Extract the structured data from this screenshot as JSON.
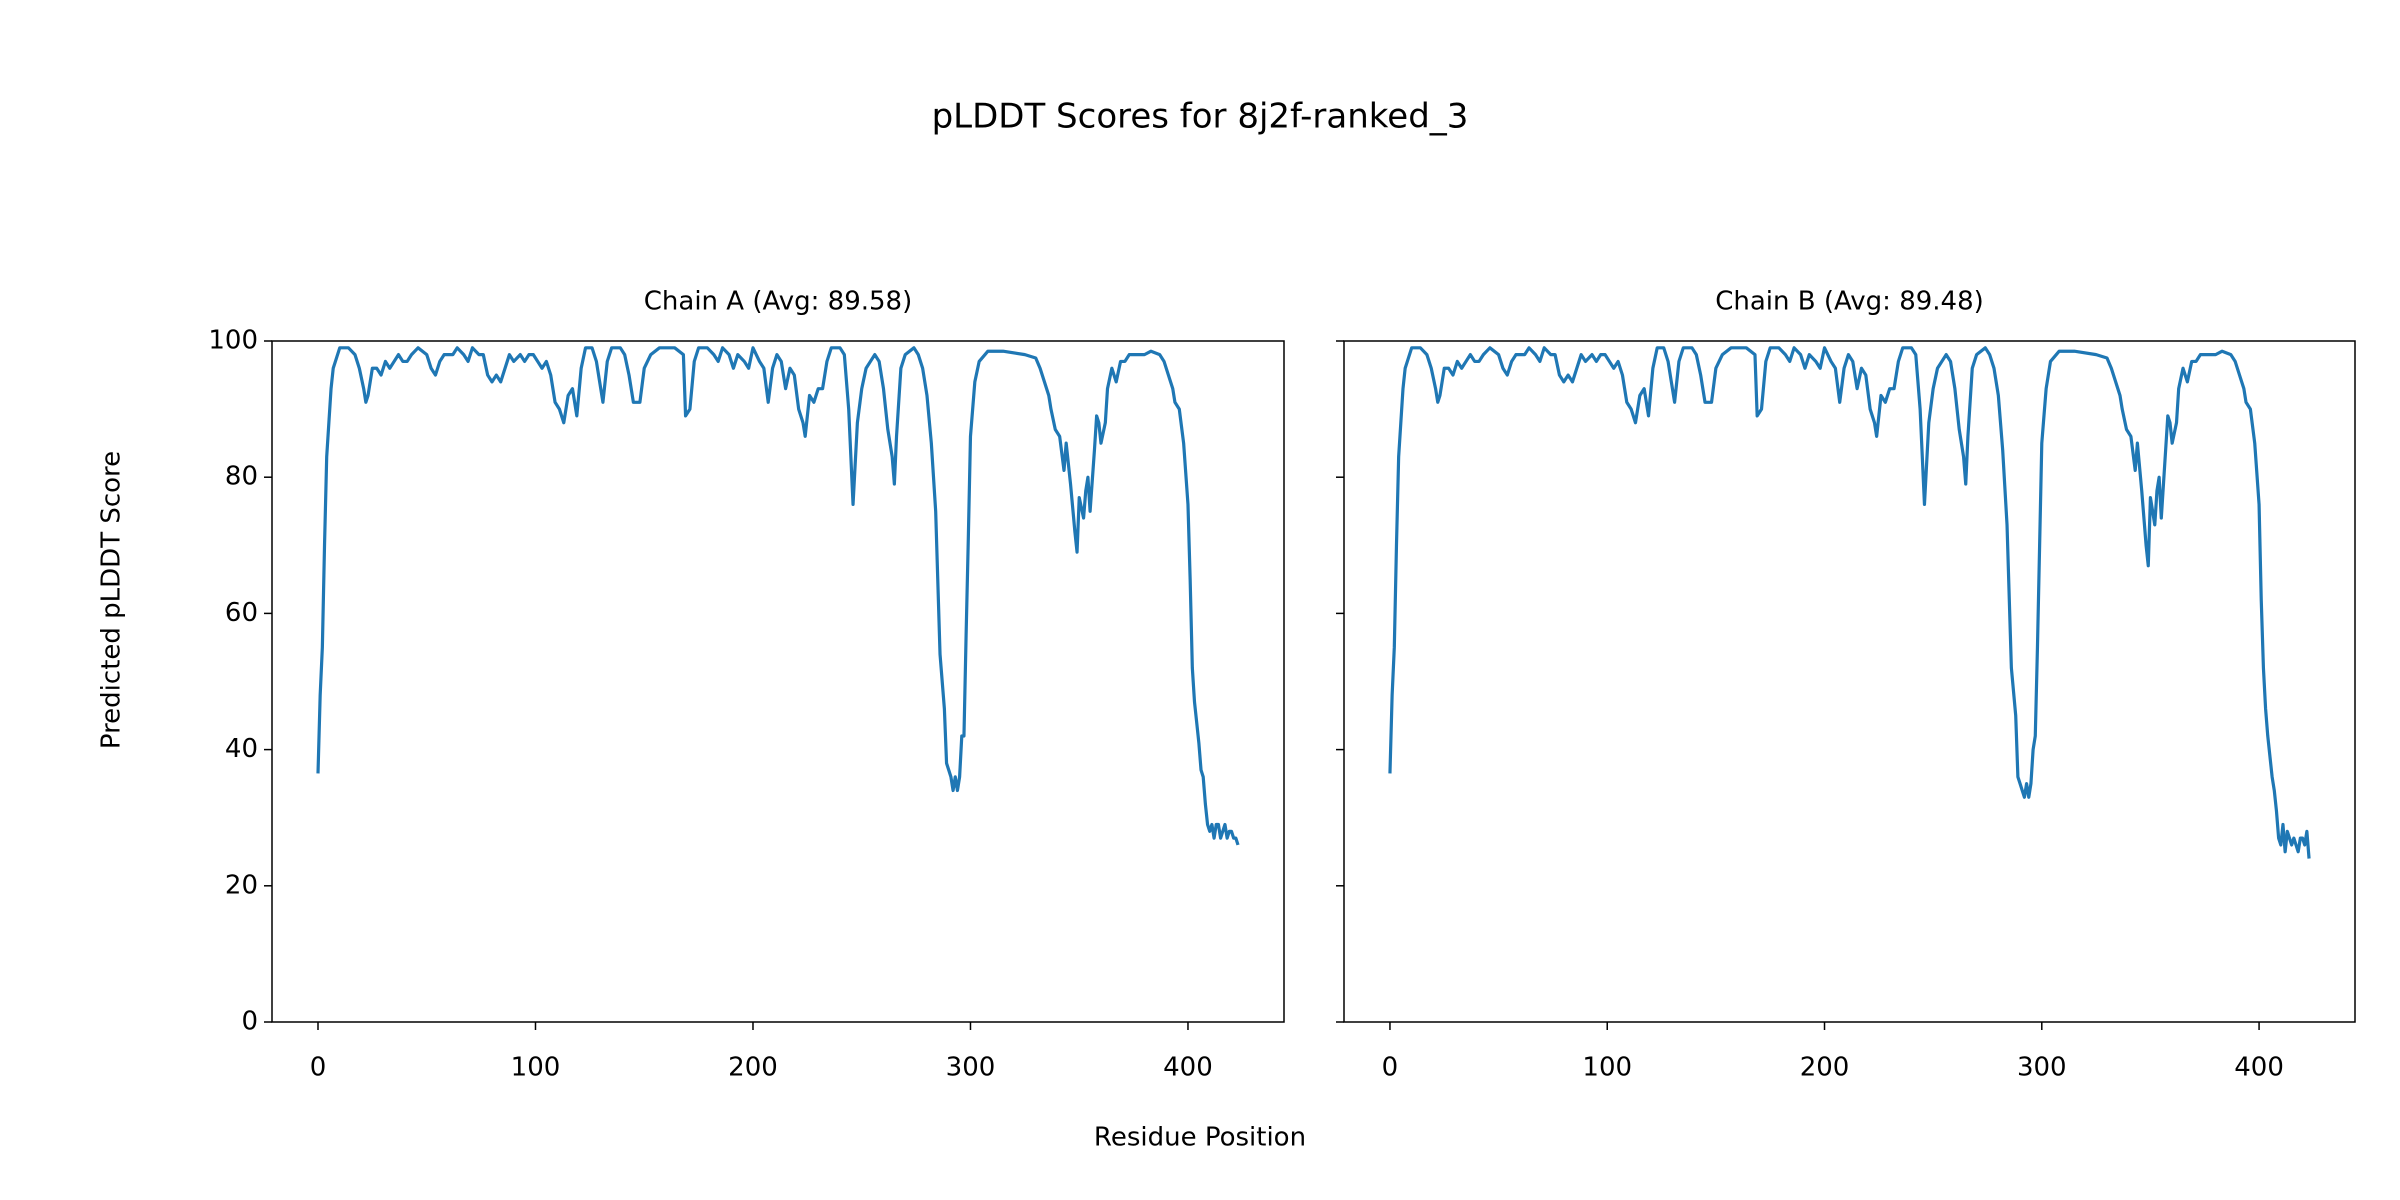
{
  "title": "pLDDT Scores for 8j2f-ranked_3",
  "x_label": "Residue Position",
  "y_label": "Predicted pLDDT Score",
  "chart_data": [
    {
      "type": "line",
      "title": "Chain A (Avg: 89.58)",
      "x": [
        0,
        1,
        2,
        3,
        4,
        5,
        6,
        7,
        8,
        10,
        14,
        17,
        19,
        21,
        22,
        23,
        25,
        27,
        29,
        31,
        33,
        35,
        37,
        39,
        41,
        43,
        46,
        50,
        52,
        54,
        56,
        58,
        62,
        64,
        67,
        69,
        71,
        74,
        76,
        78,
        80,
        82,
        84,
        86,
        88,
        90,
        93,
        95,
        97,
        99,
        101,
        103,
        105,
        107,
        109,
        111,
        113,
        115,
        117,
        119,
        121,
        123,
        126,
        128,
        130,
        131,
        133,
        135,
        139,
        141,
        143,
        145,
        148,
        150,
        153,
        157,
        164,
        168,
        169,
        171,
        173,
        175,
        179,
        182,
        184,
        186,
        189,
        191,
        193,
        196,
        198,
        200,
        203,
        205,
        207,
        209,
        211,
        213,
        215,
        217,
        219,
        221,
        223,
        224,
        226,
        228,
        230,
        232,
        234,
        236,
        240,
        242,
        244,
        246,
        248,
        250,
        252,
        254,
        256,
        258,
        260,
        262,
        264,
        265,
        266,
        268,
        270,
        274,
        276,
        278,
        280,
        282,
        284,
        286,
        288,
        289,
        290,
        291,
        292,
        293,
        294,
        295,
        296,
        297,
        298,
        299,
        300,
        302,
        304,
        308,
        315,
        325,
        330,
        332,
        334,
        336,
        337,
        339,
        341,
        343,
        344,
        346,
        348,
        349,
        350,
        352,
        353,
        354,
        355,
        357,
        358,
        359,
        360,
        362,
        363,
        365,
        367,
        369,
        371,
        373,
        377,
        380,
        383,
        387,
        389,
        391,
        393,
        394,
        396,
        398,
        400,
        401,
        402,
        403,
        404,
        405,
        406,
        407,
        408,
        409,
        410,
        411,
        412,
        413,
        414,
        415,
        416,
        417,
        418,
        419,
        420,
        421,
        422,
        423
      ],
      "series": [
        {
          "color": "#1f77b4",
          "values": [
            36.5,
            48,
            55,
            70,
            83,
            88,
            93,
            96,
            97,
            99,
            99,
            98,
            96,
            93,
            91,
            92,
            96,
            96,
            95,
            97,
            96,
            97,
            98,
            97,
            97,
            98,
            99,
            98,
            96,
            95,
            97,
            98,
            98,
            99,
            98,
            97,
            99,
            98,
            98,
            95,
            94,
            95,
            94,
            96,
            98,
            97,
            98,
            97,
            98,
            98,
            97,
            96,
            97,
            95,
            91,
            90,
            88,
            92,
            93,
            89,
            96,
            99,
            99,
            97,
            93,
            91,
            97,
            99,
            99,
            98,
            95,
            91,
            91,
            96,
            98,
            99,
            99,
            98,
            89,
            90,
            97,
            99,
            99,
            98,
            97,
            99,
            98,
            96,
            98,
            97,
            96,
            99,
            97,
            96,
            91,
            96,
            98,
            97,
            93,
            96,
            95,
            90,
            88,
            86,
            92,
            91,
            93,
            93,
            97,
            99,
            99,
            98,
            90,
            76,
            88,
            93,
            96,
            97,
            98,
            97,
            93,
            87,
            83,
            79,
            86,
            96,
            98,
            99,
            98,
            96,
            92,
            85,
            75,
            54,
            46,
            38,
            37,
            36,
            34,
            36,
            34,
            36,
            42,
            42,
            57,
            71,
            86,
            94,
            97,
            98.5,
            98.5,
            98,
            97.5,
            96,
            94,
            92,
            90,
            87,
            86,
            81,
            85,
            79,
            72,
            69,
            77,
            74,
            78,
            80,
            75,
            84,
            89,
            88,
            85,
            88,
            93,
            96,
            94,
            97,
            97,
            98,
            98,
            98,
            98.5,
            98,
            97,
            95,
            93,
            91,
            90,
            85,
            76,
            65,
            52,
            47,
            44,
            41,
            37,
            36,
            32,
            29,
            28,
            29,
            27,
            29,
            29,
            27,
            28,
            29,
            27,
            28,
            28,
            27,
            27,
            26
          ]
        }
      ],
      "xlim": [
        -21.15,
        444.15
      ],
      "ylim": [
        0,
        100
      ],
      "xticks": [
        0,
        100,
        200,
        300,
        400
      ],
      "yticks": [
        0,
        20,
        40,
        60,
        80,
        100
      ]
    },
    {
      "type": "line",
      "title": "Chain B (Avg: 89.48)",
      "x": [
        0,
        1,
        2,
        3,
        4,
        5,
        6,
        7,
        8,
        10,
        14,
        17,
        19,
        21,
        22,
        23,
        25,
        27,
        29,
        31,
        33,
        35,
        37,
        39,
        41,
        43,
        46,
        50,
        52,
        54,
        56,
        58,
        62,
        64,
        67,
        69,
        71,
        74,
        76,
        78,
        80,
        82,
        84,
        86,
        88,
        90,
        93,
        95,
        97,
        99,
        101,
        103,
        105,
        107,
        109,
        111,
        113,
        115,
        117,
        119,
        121,
        123,
        126,
        128,
        130,
        131,
        133,
        135,
        139,
        141,
        143,
        145,
        148,
        150,
        153,
        157,
        164,
        168,
        169,
        171,
        173,
        175,
        179,
        182,
        184,
        186,
        189,
        191,
        193,
        196,
        198,
        200,
        203,
        205,
        207,
        209,
        211,
        213,
        215,
        217,
        219,
        221,
        223,
        224,
        226,
        228,
        230,
        232,
        234,
        236,
        240,
        242,
        244,
        246,
        248,
        250,
        252,
        254,
        256,
        258,
        260,
        262,
        264,
        265,
        266,
        268,
        270,
        274,
        276,
        278,
        280,
        282,
        284,
        286,
        288,
        289,
        290,
        291,
        292,
        293,
        294,
        295,
        296,
        297,
        298,
        299,
        300,
        302,
        304,
        308,
        315,
        325,
        330,
        332,
        334,
        336,
        337,
        339,
        341,
        343,
        344,
        346,
        348,
        349,
        350,
        352,
        353,
        354,
        355,
        357,
        358,
        359,
        360,
        362,
        363,
        365,
        367,
        369,
        371,
        373,
        377,
        380,
        383,
        387,
        389,
        391,
        393,
        394,
        396,
        398,
        400,
        401,
        402,
        403,
        404,
        405,
        406,
        407,
        408,
        409,
        410,
        411,
        412,
        413,
        414,
        415,
        416,
        417,
        418,
        419,
        420,
        421,
        422,
        423
      ],
      "series": [
        {
          "color": "#1f77b4",
          "values": [
            36.5,
            48,
            55,
            70,
            83,
            88,
            93,
            96,
            97,
            99,
            99,
            98,
            96,
            93,
            91,
            92,
            96,
            96,
            95,
            97,
            96,
            97,
            98,
            97,
            97,
            98,
            99,
            98,
            96,
            95,
            97,
            98,
            98,
            99,
            98,
            97,
            99,
            98,
            98,
            95,
            94,
            95,
            94,
            96,
            98,
            97,
            98,
            97,
            98,
            98,
            97,
            96,
            97,
            95,
            91,
            90,
            88,
            92,
            93,
            89,
            96,
            99,
            99,
            97,
            93,
            91,
            97,
            99,
            99,
            98,
            95,
            91,
            91,
            96,
            98,
            99,
            99,
            98,
            89,
            90,
            97,
            99,
            99,
            98,
            97,
            99,
            98,
            96,
            98,
            97,
            96,
            99,
            97,
            96,
            91,
            96,
            98,
            97,
            93,
            96,
            95,
            90,
            88,
            86,
            92,
            91,
            93,
            93,
            97,
            99,
            99,
            98,
            90,
            76,
            88,
            93,
            96,
            97,
            98,
            97,
            93,
            87,
            83,
            79,
            86,
            96,
            98,
            99,
            98,
            96,
            92,
            84,
            73,
            52,
            45,
            36,
            35,
            34,
            33,
            35,
            33,
            35,
            40,
            42,
            55,
            70,
            85,
            93,
            97,
            98.5,
            98.5,
            98,
            97.5,
            96,
            94,
            92,
            90,
            87,
            86,
            81,
            85,
            78,
            70,
            67,
            77,
            73,
            78,
            80,
            74,
            84,
            89,
            88,
            85,
            88,
            93,
            96,
            94,
            97,
            97,
            98,
            98,
            98,
            98.5,
            98,
            97,
            95,
            93,
            91,
            90,
            85,
            76,
            62,
            52,
            46,
            42,
            39,
            36,
            34,
            31,
            27,
            26,
            29,
            25,
            28,
            27,
            26,
            27,
            26,
            25,
            27,
            27,
            26,
            28,
            24
          ]
        }
      ],
      "xlim": [
        -21.15,
        444.15
      ],
      "ylim": [
        0,
        100
      ],
      "xticks": [
        0,
        100,
        200,
        300,
        400
      ],
      "yticks": [
        0,
        20,
        40,
        60,
        80,
        100
      ]
    }
  ]
}
